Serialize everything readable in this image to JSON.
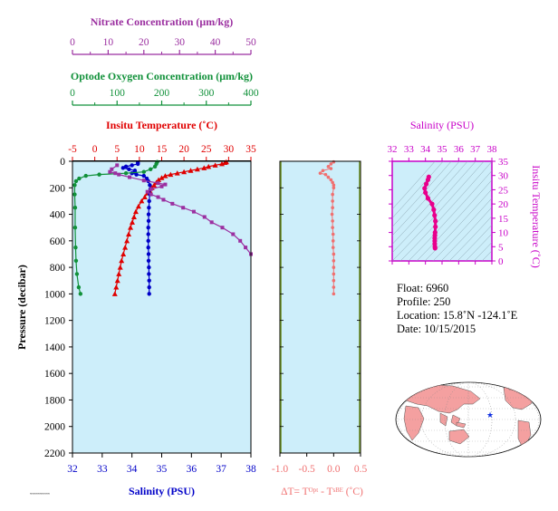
{
  "colors": {
    "panel_bg": "#cdeefa",
    "nitrate": "#9b2fa0",
    "oxygen": "#11913a",
    "temperature": "#e00000",
    "salinity": "#0000c8",
    "delta_t": "#f07070",
    "ts_line": "#e8008c",
    "ts_axis": "#c800c8",
    "map_land": "#f4a0a0",
    "star": "#1030e0"
  },
  "chart_data": [
    {
      "type": "line",
      "title": "",
      "ylabel": "Pressure (decibar)",
      "ylim": [
        0,
        2200
      ],
      "yticks": [
        0,
        200,
        400,
        600,
        800,
        1000,
        1200,
        1400,
        1600,
        1800,
        2000,
        2200
      ],
      "axes": {
        "nitrate": {
          "label": "Nitrate Concentration (μm/kg)",
          "range": [
            0,
            50
          ],
          "ticks": [
            "0",
            "10",
            "20",
            "30",
            "40",
            "50"
          ]
        },
        "oxygen": {
          "label": "Optode Oxygen Concentration (μm/kg)",
          "range": [
            0,
            400
          ],
          "ticks": [
            "0",
            "100",
            "200",
            "300",
            "400"
          ]
        },
        "temperature": {
          "label": "Insitu Temperature (˚C)",
          "range": [
            -5,
            35
          ],
          "ticks": [
            "-5",
            "0",
            "5",
            "10",
            "15",
            "20",
            "25",
            "30",
            "35"
          ]
        },
        "salinity": {
          "label": "Salinity (PSU)",
          "range": [
            32,
            38
          ],
          "ticks": [
            "32",
            "33",
            "34",
            "35",
            "36",
            "37",
            "38"
          ]
        }
      },
      "series": [
        {
          "axis": "temperature",
          "marker": "triangle",
          "points": [
            [
              29.5,
              5
            ],
            [
              29.2,
              10
            ],
            [
              28.5,
              20
            ],
            [
              27,
              30
            ],
            [
              25.5,
              40
            ],
            [
              24.5,
              50
            ],
            [
              23,
              60
            ],
            [
              21.5,
              70
            ],
            [
              20,
              80
            ],
            [
              18.5,
              90
            ],
            [
              17,
              100
            ],
            [
              15.8,
              110
            ],
            [
              15,
              125
            ],
            [
              14.3,
              140
            ],
            [
              13.8,
              160
            ],
            [
              13.3,
              180
            ],
            [
              12.8,
              200
            ],
            [
              12.3,
              220
            ],
            [
              11.8,
              240
            ],
            [
              11.2,
              270
            ],
            [
              10.5,
              300
            ],
            [
              9.8,
              340
            ],
            [
              9.2,
              380
            ],
            [
              8.8,
              420
            ],
            [
              8.4,
              460
            ],
            [
              8,
              500
            ],
            [
              7.6,
              550
            ],
            [
              7.2,
              600
            ],
            [
              6.8,
              650
            ],
            [
              6.4,
              700
            ],
            [
              6,
              750
            ],
            [
              5.7,
              800
            ],
            [
              5.4,
              850
            ],
            [
              5.1,
              900
            ],
            [
              4.8,
              950
            ],
            [
              4.5,
              1000
            ]
          ]
        },
        {
          "axis": "salinity",
          "marker": "circle",
          "points": [
            [
              34.2,
              10
            ],
            [
              34.2,
              20
            ],
            [
              34,
              30
            ],
            [
              33.8,
              40
            ],
            [
              33.7,
              50
            ],
            [
              33.9,
              60
            ],
            [
              34.1,
              70
            ],
            [
              34.1,
              80
            ],
            [
              34.0,
              90
            ],
            [
              34.15,
              100
            ],
            [
              34.4,
              110
            ],
            [
              34.5,
              130
            ],
            [
              34.55,
              150
            ],
            [
              34.6,
              180
            ],
            [
              34.62,
              210
            ],
            [
              34.6,
              250
            ],
            [
              34.58,
              300
            ],
            [
              34.57,
              350
            ],
            [
              34.56,
              400
            ],
            [
              34.56,
              450
            ],
            [
              34.55,
              500
            ],
            [
              34.55,
              550
            ],
            [
              34.55,
              600
            ],
            [
              34.55,
              650
            ],
            [
              34.56,
              700
            ],
            [
              34.56,
              750
            ],
            [
              34.57,
              800
            ],
            [
              34.57,
              850
            ],
            [
              34.58,
              900
            ],
            [
              34.58,
              950
            ],
            [
              34.58,
              1000
            ]
          ]
        },
        {
          "axis": "oxygen",
          "marker": "circle",
          "points": [
            [
              190,
              5
            ],
            [
              188,
              20
            ],
            [
              185,
              40
            ],
            [
              175,
              60
            ],
            [
              160,
              80
            ],
            [
              120,
              90
            ],
            [
              60,
              100
            ],
            [
              30,
              110
            ],
            [
              15,
              130
            ],
            [
              8,
              150
            ],
            [
              5,
              180
            ],
            [
              5,
              250
            ],
            [
              6,
              350
            ],
            [
              6,
              500
            ],
            [
              7,
              650
            ],
            [
              8,
              750
            ],
            [
              10,
              850
            ],
            [
              14,
              950
            ],
            [
              18,
              1000
            ]
          ]
        },
        {
          "axis": "nitrate",
          "marker": "square",
          "points": [
            [
              12.5,
              30
            ],
            [
              11,
              60
            ],
            [
              10.5,
              80
            ],
            [
              12,
              90
            ],
            [
              13,
              100
            ],
            [
              16,
              120
            ],
            [
              20,
              145
            ],
            [
              24,
              165
            ],
            [
              26,
              175
            ],
            [
              25,
              190
            ],
            [
              22,
              210
            ],
            [
              21,
              230
            ],
            [
              22,
              250
            ],
            [
              24,
              270
            ],
            [
              25.5,
              290
            ],
            [
              28,
              320
            ],
            [
              31,
              350
            ],
            [
              34,
              380
            ],
            [
              37,
              420
            ],
            [
              39,
              460
            ],
            [
              42,
              500
            ],
            [
              45,
              550
            ],
            [
              47,
              600
            ],
            [
              48.5,
              650
            ],
            [
              50,
              700
            ]
          ]
        }
      ]
    },
    {
      "type": "line",
      "title": "",
      "xlabel": "ΔT= Tᴼᵖᵗ - Tˢᴮᴱ (˚C)",
      "xlim": [
        -1.0,
        0.5
      ],
      "xticks": [
        "-1.0",
        "-0.5",
        "0.0",
        "0.5"
      ],
      "ylim": [
        0,
        2200
      ],
      "series": [
        {
          "marker": "circle",
          "points": [
            [
              0.0,
              5
            ],
            [
              -0.05,
              20
            ],
            [
              -0.1,
              40
            ],
            [
              -0.05,
              55
            ],
            [
              -0.2,
              70
            ],
            [
              -0.25,
              90
            ],
            [
              -0.15,
              100
            ],
            [
              -0.1,
              120
            ],
            [
              -0.05,
              140
            ],
            [
              -0.02,
              160
            ],
            [
              0.0,
              180
            ],
            [
              0.0,
              200
            ],
            [
              -0.02,
              250
            ],
            [
              -0.02,
              300
            ],
            [
              -0.02,
              350
            ],
            [
              -0.03,
              400
            ],
            [
              -0.02,
              450
            ],
            [
              -0.02,
              500
            ],
            [
              -0.01,
              550
            ],
            [
              -0.01,
              600
            ],
            [
              -0.01,
              650
            ],
            [
              0.0,
              700
            ],
            [
              0.0,
              750
            ],
            [
              0.0,
              800
            ],
            [
              0.0,
              850
            ],
            [
              0.0,
              900
            ],
            [
              0.0,
              950
            ],
            [
              0.0,
              1000
            ]
          ]
        }
      ]
    },
    {
      "type": "line",
      "title": "",
      "xlabel_top": "Salinity (PSU)",
      "ylabel_right": "Insitu Temperature (˚C)",
      "xlim": [
        32,
        38
      ],
      "ylim": [
        0,
        35
      ],
      "xticks": [
        "32",
        "33",
        "34",
        "35",
        "36",
        "37",
        "38"
      ],
      "yticks": [
        "0",
        "5",
        "10",
        "15",
        "20",
        "25",
        "30",
        "35"
      ],
      "series": [
        {
          "marker": "circle",
          "points": [
            [
              34.2,
              29.5
            ],
            [
              34.15,
              28.5
            ],
            [
              34.05,
              27
            ],
            [
              33.95,
              25.5
            ],
            [
              34.0,
              24
            ],
            [
              34.15,
              22
            ],
            [
              34.4,
              20
            ],
            [
              34.5,
              18
            ],
            [
              34.55,
              16
            ],
            [
              34.6,
              14
            ],
            [
              34.6,
              12
            ],
            [
              34.58,
              10
            ],
            [
              34.57,
              9
            ],
            [
              34.56,
              8
            ],
            [
              34.56,
              7
            ],
            [
              34.56,
              6
            ],
            [
              34.57,
              5
            ],
            [
              34.58,
              4.5
            ]
          ]
        }
      ]
    }
  ],
  "info": {
    "float": "Float:  6960",
    "profile": "Profile:  250",
    "location": "Location:  15.8˚N  -124.1˚E",
    "date": "Date:  10/15/2015",
    "footnote": "≈≈≈≈≈≈≈≈≈≈"
  }
}
